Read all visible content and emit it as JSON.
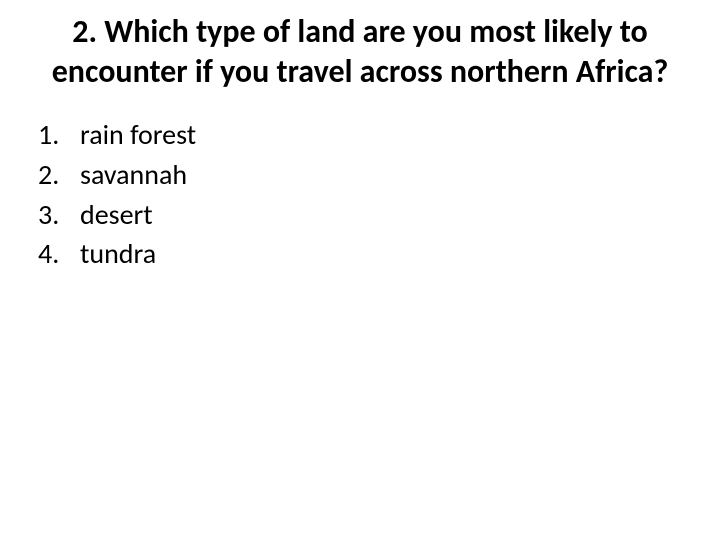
{
  "question": {
    "title": "2. Which type of land are you most likely to encounter if you travel across northern Africa?",
    "title_fontsize": 32,
    "title_fontweight": 700,
    "options": [
      {
        "number": "1.",
        "text": "rain forest"
      },
      {
        "number": "2.",
        "text": "savannah"
      },
      {
        "number": "3.",
        "text": "desert"
      },
      {
        "number": "4.",
        "text": "tundra"
      }
    ],
    "option_fontsize": 28,
    "text_color": "#000000",
    "background_color": "#ffffff"
  }
}
